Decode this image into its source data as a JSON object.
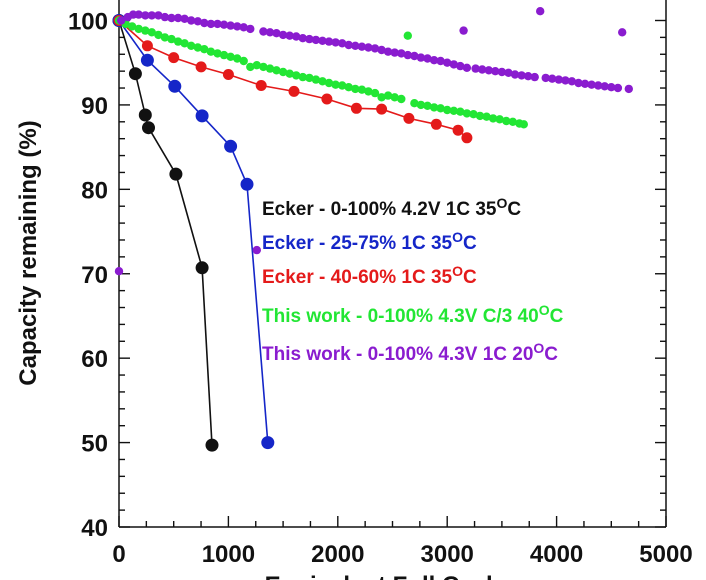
{
  "chart_data": {
    "type": "scatter",
    "xlabel": "Equivalent Full Cycles",
    "ylabel": "Capacity remaining (%)",
    "xlim": [
      0,
      5000
    ],
    "ylim": [
      40,
      102
    ],
    "x_ticks": [
      "0",
      "1000",
      "2000",
      "3000",
      "4000",
      "5000"
    ],
    "y_ticks": [
      "40",
      "50",
      "60",
      "70",
      "80",
      "90",
      "100"
    ],
    "grid": false,
    "legend_position": "middle-right",
    "series": [
      {
        "name": "Ecker - 0-100% 4.2V 1C 35OC",
        "legend": {
          "pre": "Ecker - 0-100% 4.2V 1C 35",
          "sup": "O",
          "post": "C"
        },
        "color": "#111111",
        "marker": "large",
        "connected": true,
        "points": [
          [
            0,
            100
          ],
          [
            150,
            93.7
          ],
          [
            240,
            88.8
          ],
          [
            270,
            87.3
          ],
          [
            520,
            81.8
          ],
          [
            760,
            70.7
          ],
          [
            850,
            49.7
          ]
        ]
      },
      {
        "name": "Ecker - 25-75% 1C 35OC",
        "legend": {
          "pre": "Ecker - 25-75% 1C 35",
          "sup": "O",
          "post": "C"
        },
        "color": "#1526c8",
        "marker": "large",
        "connected": true,
        "points": [
          [
            0,
            100
          ],
          [
            260,
            95.3
          ],
          [
            510,
            92.2
          ],
          [
            760,
            88.7
          ],
          [
            1020,
            85.1
          ],
          [
            1170,
            80.6
          ],
          [
            1360,
            50.0
          ]
        ]
      },
      {
        "name": "Ecker - 40-60% 1C 35OC",
        "legend": {
          "pre": "Ecker - 40-60% 1C 35",
          "sup": "O",
          "post": "C"
        },
        "color": "#e41a1a",
        "marker": "medium",
        "connected": true,
        "points": [
          [
            0,
            100
          ],
          [
            260,
            97.0
          ],
          [
            500,
            95.6
          ],
          [
            750,
            94.5
          ],
          [
            1000,
            93.6
          ],
          [
            1300,
            92.3
          ],
          [
            1600,
            91.6
          ],
          [
            1900,
            90.7
          ],
          [
            2170,
            89.6
          ],
          [
            2400,
            89.5
          ],
          [
            2650,
            88.4
          ],
          [
            2900,
            87.7
          ],
          [
            3100,
            87.0
          ],
          [
            3180,
            86.1
          ]
        ]
      },
      {
        "name": "This work - 0-100% 4.3V C/3 40OC",
        "legend": {
          "pre": "This work - 0-100% 4.3V C/3 40",
          "sup": "O",
          "post": "C"
        },
        "color": "#22e634",
        "marker": "small",
        "connected": false,
        "points": [
          [
            0,
            100
          ],
          [
            60,
            99.6
          ],
          [
            120,
            99.3
          ],
          [
            180,
            99.0
          ],
          [
            240,
            98.8
          ],
          [
            300,
            98.6
          ],
          [
            360,
            98.3
          ],
          [
            420,
            98.0
          ],
          [
            480,
            97.8
          ],
          [
            540,
            97.5
          ],
          [
            600,
            97.3
          ],
          [
            660,
            97.0
          ],
          [
            720,
            96.8
          ],
          [
            780,
            96.6
          ],
          [
            840,
            96.3
          ],
          [
            900,
            96.1
          ],
          [
            960,
            95.9
          ],
          [
            1020,
            95.7
          ],
          [
            1080,
            95.5
          ],
          [
            1140,
            95.2
          ],
          [
            1200,
            94.5
          ],
          [
            1260,
            94.7
          ],
          [
            1320,
            94.5
          ],
          [
            1380,
            94.3
          ],
          [
            1440,
            94.1
          ],
          [
            1500,
            93.9
          ],
          [
            1560,
            93.7
          ],
          [
            1620,
            93.5
          ],
          [
            1680,
            93.3
          ],
          [
            1740,
            93.2
          ],
          [
            1800,
            93.0
          ],
          [
            1860,
            92.8
          ],
          [
            1920,
            92.6
          ],
          [
            1980,
            92.4
          ],
          [
            2040,
            92.3
          ],
          [
            2100,
            92.1
          ],
          [
            2160,
            91.9
          ],
          [
            2220,
            91.8
          ],
          [
            2280,
            91.6
          ],
          [
            2340,
            91.4
          ],
          [
            2400,
            90.9
          ],
          [
            2460,
            91.1
          ],
          [
            2520,
            90.9
          ],
          [
            2580,
            90.7
          ],
          [
            2640,
            98.2
          ],
          [
            2700,
            90.2
          ],
          [
            2760,
            90.0
          ],
          [
            2820,
            89.9
          ],
          [
            2880,
            89.7
          ],
          [
            2940,
            89.6
          ],
          [
            3000,
            89.4
          ],
          [
            3060,
            89.3
          ],
          [
            3120,
            89.2
          ],
          [
            3180,
            89.0
          ],
          [
            3240,
            88.9
          ],
          [
            3300,
            88.7
          ],
          [
            3360,
            88.6
          ],
          [
            3420,
            88.4
          ],
          [
            3480,
            88.3
          ],
          [
            3540,
            88.1
          ],
          [
            3600,
            88.0
          ],
          [
            3660,
            87.8
          ],
          [
            3700,
            87.7
          ]
        ]
      },
      {
        "name": "This work - 0-100% 4.3V 1C 20OC",
        "legend": {
          "pre": "This work - 0-100% 4.3V 1C 20",
          "sup": "O",
          "post": "C"
        },
        "color": "#8a1ccf",
        "marker": "small",
        "connected": false,
        "points": [
          [
            0,
            70.3
          ],
          [
            20,
            100.0
          ],
          [
            80,
            100.4
          ],
          [
            130,
            100.7
          ],
          [
            180,
            100.7
          ],
          [
            240,
            100.6
          ],
          [
            300,
            100.6
          ],
          [
            360,
            100.6
          ],
          [
            420,
            100.4
          ],
          [
            480,
            100.3
          ],
          [
            540,
            100.3
          ],
          [
            600,
            100.2
          ],
          [
            660,
            100.0
          ],
          [
            720,
            99.9
          ],
          [
            780,
            99.7
          ],
          [
            840,
            99.6
          ],
          [
            900,
            99.6
          ],
          [
            960,
            99.5
          ],
          [
            1020,
            99.4
          ],
          [
            1080,
            99.3
          ],
          [
            1140,
            99.2
          ],
          [
            1200,
            99.0
          ],
          [
            1260,
            72.8
          ],
          [
            1320,
            98.7
          ],
          [
            1380,
            98.6
          ],
          [
            1440,
            98.5
          ],
          [
            1500,
            98.3
          ],
          [
            1560,
            98.2
          ],
          [
            1620,
            98.1
          ],
          [
            1680,
            97.9
          ],
          [
            1740,
            97.8
          ],
          [
            1800,
            97.7
          ],
          [
            1860,
            97.6
          ],
          [
            1920,
            97.5
          ],
          [
            1980,
            97.4
          ],
          [
            2040,
            97.3
          ],
          [
            2100,
            97.1
          ],
          [
            2160,
            97.0
          ],
          [
            2220,
            96.9
          ],
          [
            2280,
            96.8
          ],
          [
            2340,
            96.7
          ],
          [
            2400,
            96.5
          ],
          [
            2460,
            96.3
          ],
          [
            2520,
            96.2
          ],
          [
            2580,
            96.1
          ],
          [
            2640,
            95.9
          ],
          [
            2700,
            95.8
          ],
          [
            2760,
            95.6
          ],
          [
            2820,
            95.5
          ],
          [
            2880,
            95.3
          ],
          [
            2940,
            95.2
          ],
          [
            3000,
            95.0
          ],
          [
            3060,
            94.8
          ],
          [
            3120,
            94.6
          ],
          [
            3150,
            98.8
          ],
          [
            3180,
            94.4
          ],
          [
            3260,
            94.3
          ],
          [
            3320,
            94.2
          ],
          [
            3380,
            94.1
          ],
          [
            3440,
            94.0
          ],
          [
            3500,
            93.9
          ],
          [
            3560,
            93.8
          ],
          [
            3620,
            93.6
          ],
          [
            3680,
            93.5
          ],
          [
            3740,
            93.4
          ],
          [
            3800,
            93.3
          ],
          [
            3850,
            101.1
          ],
          [
            3900,
            93.2
          ],
          [
            3960,
            93.1
          ],
          [
            4020,
            93.0
          ],
          [
            4080,
            92.9
          ],
          [
            4140,
            92.8
          ],
          [
            4200,
            92.6
          ],
          [
            4260,
            92.5
          ],
          [
            4320,
            92.4
          ],
          [
            4380,
            92.3
          ],
          [
            4440,
            92.2
          ],
          [
            4500,
            92.1
          ],
          [
            4560,
            92.0
          ],
          [
            4600,
            98.6
          ],
          [
            4660,
            91.9
          ]
        ]
      }
    ]
  }
}
